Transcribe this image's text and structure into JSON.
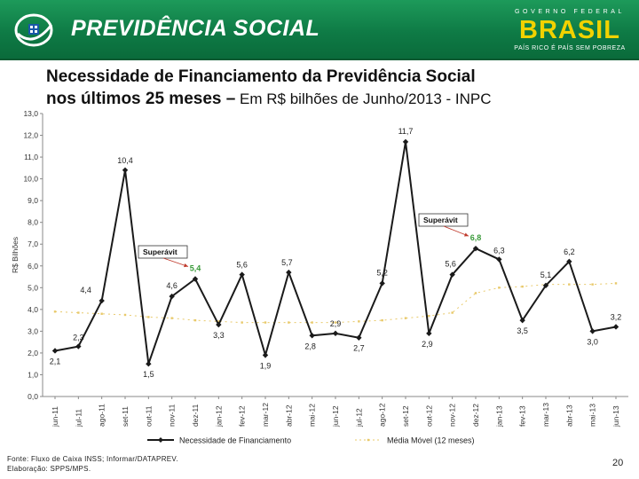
{
  "header": {
    "brand": "PREVIDÊNCIA SOCIAL",
    "gov_label": "GOVERNO FEDERAL",
    "country": "BRASIL",
    "slogan": "PAÍS RICO É PAÍS SEM POBREZA",
    "colors": {
      "bar": "#0e7a45",
      "brasil": "#f2d200"
    }
  },
  "title": {
    "line1": "Necessidade de Financiamento da Previdência Social",
    "line2_bold": "nos últimos 25 meses –",
    "line2_rest": " Em R$ bilhões de Junho/2013 - INPC"
  },
  "chart_data": {
    "type": "line",
    "ylabel": "R$ Bilhões",
    "ylim": [
      0,
      13
    ],
    "ytick_labels": [
      "0,0",
      "1,0",
      "2,0",
      "3,0",
      "4,0",
      "5,0",
      "6,0",
      "7,0",
      "8,0",
      "9,0",
      "10,0",
      "11,0",
      "12,0",
      "13,0"
    ],
    "categories": [
      "jun-11",
      "jul-11",
      "ago-11",
      "set-11",
      "out-11",
      "nov-11",
      "dez-11",
      "jan-12",
      "fev-12",
      "mar-12",
      "abr-12",
      "mai-12",
      "jun-12",
      "jul-12",
      "ago-12",
      "set-12",
      "out-12",
      "nov-12",
      "dez-12",
      "jan-13",
      "fev-13",
      "mar-13",
      "abr-13",
      "mai-13",
      "jun-13"
    ],
    "series": [
      {
        "name": "Necessidade de Financiamento",
        "color": "#1a1a1a",
        "values": [
          2.1,
          2.3,
          4.4,
          10.4,
          1.5,
          4.6,
          5.4,
          3.3,
          5.6,
          1.9,
          5.7,
          2.8,
          2.9,
          2.7,
          5.2,
          11.7,
          2.9,
          5.6,
          6.8,
          6.3,
          3.5,
          5.1,
          6.2,
          3.0,
          3.2
        ],
        "labels": [
          "2,1",
          "2,3",
          "4,4",
          "10,4",
          "1,5",
          "4,6",
          "5,4",
          "3,3",
          "5,6",
          "1,9",
          "5,7",
          "2,8",
          "2,9",
          "2,7",
          "5,2",
          "11,7",
          "2,9",
          "5,6",
          "6,8",
          "6,3",
          "3,5",
          "5,1",
          "6,2",
          "3,0",
          "3,2"
        ]
      },
      {
        "name": "Média Móvel (12 meses)",
        "color": "#e8c96a",
        "values": [
          3.9,
          3.85,
          3.8,
          3.75,
          3.65,
          3.6,
          3.5,
          3.45,
          3.4,
          3.4,
          3.4,
          3.4,
          3.4,
          3.45,
          3.5,
          3.6,
          3.7,
          3.85,
          4.75,
          5.0,
          5.05,
          5.15,
          5.15,
          5.15,
          5.2
        ]
      }
    ],
    "annotations": [
      {
        "text": "Superávit",
        "month": "dez-11"
      },
      {
        "text": "Superávit",
        "month": "dez-12"
      }
    ],
    "legend": [
      "Necessidade de Financiamento",
      "Média Móvel (12 meses)"
    ],
    "legend_position": "bottom"
  },
  "footer": {
    "source": "Fonte: Fluxo de Caixa INSS; Informar/DATAPREV.",
    "prepared": "Elaboração: SPPS/MPS.",
    "page": "20"
  }
}
